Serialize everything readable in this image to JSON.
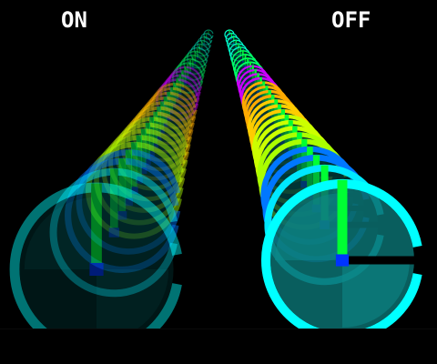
{
  "hud": {
    "left_label": "ON",
    "right_label": "OFF"
  },
  "colors": {
    "background": "#000000",
    "label": "#ffffff",
    "hand_fill": "#00ff33",
    "hand_base": "#0033ff",
    "dial_face_dark": "#003a3a",
    "ring_palette_near_to_far": [
      "#00ffff",
      "#00e8ff",
      "#0077ff",
      "#aaff00",
      "#ccff00",
      "#ffcc00",
      "#ffaa00",
      "#cc00ff",
      "#00ff66",
      "#00ffcc"
    ]
  },
  "scene": {
    "left_column_icon": "power-dial-icon",
    "right_column_icon": "power-dial-icon",
    "left_state": "on",
    "right_state": "off",
    "left_opacity": 0.45,
    "right_opacity": 1.0
  }
}
